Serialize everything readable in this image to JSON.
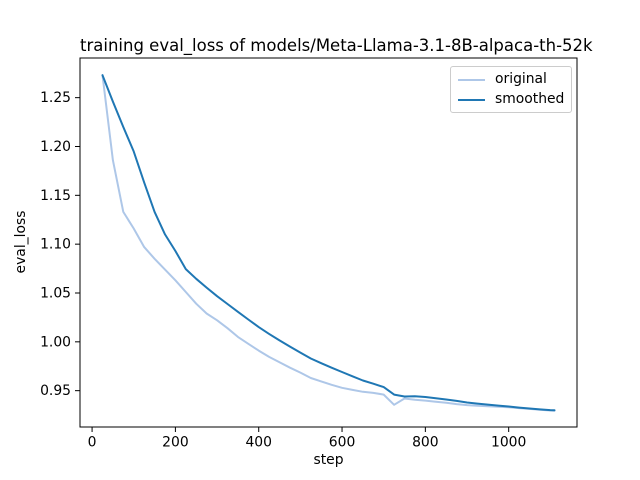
{
  "chart_data": {
    "type": "line",
    "title": "training eval_loss of models/Meta-Llama-3.1-8B-alpaca-th-52k",
    "xlabel": "step",
    "ylabel": "eval_loss",
    "grid": false,
    "legend_position": "upper right",
    "xlim": [
      -29,
      1164
    ],
    "ylim": [
      0.9128,
      1.2906
    ],
    "x_tick_values": [
      0,
      200,
      400,
      600,
      800,
      1000
    ],
    "x_tick_labels": [
      "0",
      "200",
      "400",
      "600",
      "800",
      "1000"
    ],
    "y_tick_values": [
      0.95,
      1.0,
      1.05,
      1.1,
      1.15,
      1.2,
      1.25
    ],
    "y_tick_labels": [
      "0.95",
      "1.00",
      "1.05",
      "1.10",
      "1.15",
      "1.20",
      "1.25"
    ],
    "x": [
      25,
      50,
      75,
      100,
      125,
      150,
      175,
      200,
      225,
      250,
      275,
      300,
      325,
      350,
      375,
      400,
      425,
      450,
      475,
      500,
      525,
      550,
      575,
      600,
      625,
      650,
      675,
      700,
      725,
      750,
      775,
      800,
      825,
      850,
      875,
      900,
      925,
      950,
      975,
      1000,
      1025,
      1050,
      1075,
      1100,
      1110
    ],
    "series": [
      {
        "name": "original",
        "color": "#aec7e8",
        "values": [
          1.273,
          1.186,
          1.133,
          1.116,
          1.097,
          1.085,
          1.074,
          1.063,
          1.051,
          1.039,
          1.029,
          1.022,
          1.014,
          1.005,
          0.998,
          0.991,
          0.9846,
          0.979,
          0.9735,
          0.9685,
          0.963,
          0.9595,
          0.956,
          0.9529,
          0.9508,
          0.9488,
          0.9477,
          0.946,
          0.9355,
          0.942,
          0.9408,
          0.9398,
          0.9387,
          0.9376,
          0.9362,
          0.9352,
          0.9346,
          0.934,
          0.9336,
          0.9331,
          0.9322,
          0.9313,
          0.9304,
          0.9297,
          0.9295
        ]
      },
      {
        "name": "smoothed",
        "color": "#1f77b4",
        "values": [
          1.273,
          1.246,
          1.22,
          1.195,
          1.163,
          1.133,
          1.11,
          1.093,
          1.0745,
          1.0645,
          1.0555,
          1.0467,
          1.0387,
          1.0307,
          1.0229,
          1.0151,
          1.0081,
          1.0015,
          0.9951,
          0.989,
          0.9829,
          0.9781,
          0.9735,
          0.9691,
          0.9647,
          0.9604,
          0.9571,
          0.9537,
          0.946,
          0.944,
          0.9443,
          0.9435,
          0.9423,
          0.941,
          0.9395,
          0.9379,
          0.9368,
          0.9357,
          0.9347,
          0.9338,
          0.9327,
          0.9317,
          0.9308,
          0.9301,
          0.93
        ]
      }
    ]
  },
  "legend": {
    "entries": [
      {
        "label": "original",
        "color": "#aec7e8"
      },
      {
        "label": "smoothed",
        "color": "#1f77b4"
      }
    ]
  }
}
